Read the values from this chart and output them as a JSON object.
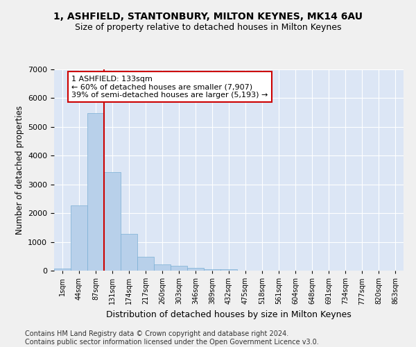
{
  "title": "1, ASHFIELD, STANTONBURY, MILTON KEYNES, MK14 6AU",
  "subtitle": "Size of property relative to detached houses in Milton Keynes",
  "xlabel": "Distribution of detached houses by size in Milton Keynes",
  "ylabel": "Number of detached properties",
  "bin_labels": [
    "1sqm",
    "44sqm",
    "87sqm",
    "131sqm",
    "174sqm",
    "217sqm",
    "260sqm",
    "303sqm",
    "346sqm",
    "389sqm",
    "432sqm",
    "475sqm",
    "518sqm",
    "561sqm",
    "604sqm",
    "648sqm",
    "691sqm",
    "734sqm",
    "777sqm",
    "820sqm",
    "863sqm"
  ],
  "bar_heights": [
    70,
    2270,
    5480,
    3420,
    1290,
    490,
    210,
    160,
    100,
    60,
    50,
    0,
    0,
    0,
    0,
    0,
    0,
    0,
    0,
    0,
    0
  ],
  "bar_color": "#b8d0ea",
  "bar_edge_color": "#7aafd4",
  "background_color": "#dce6f5",
  "grid_color": "#ffffff",
  "ylim": [
    0,
    7000
  ],
  "yticks": [
    0,
    1000,
    2000,
    3000,
    4000,
    5000,
    6000,
    7000
  ],
  "marker_line_bin": 2,
  "annotation_text": "1 ASHFIELD: 133sqm\n← 60% of detached houses are smaller (7,907)\n39% of semi-detached houses are larger (5,193) →",
  "annotation_box_color": "#ffffff",
  "annotation_border_color": "#cc0000",
  "title_fontsize": 10,
  "subtitle_fontsize": 9,
  "footer_text": "Contains HM Land Registry data © Crown copyright and database right 2024.\nContains public sector information licensed under the Open Government Licence v3.0.",
  "footer_fontsize": 7
}
